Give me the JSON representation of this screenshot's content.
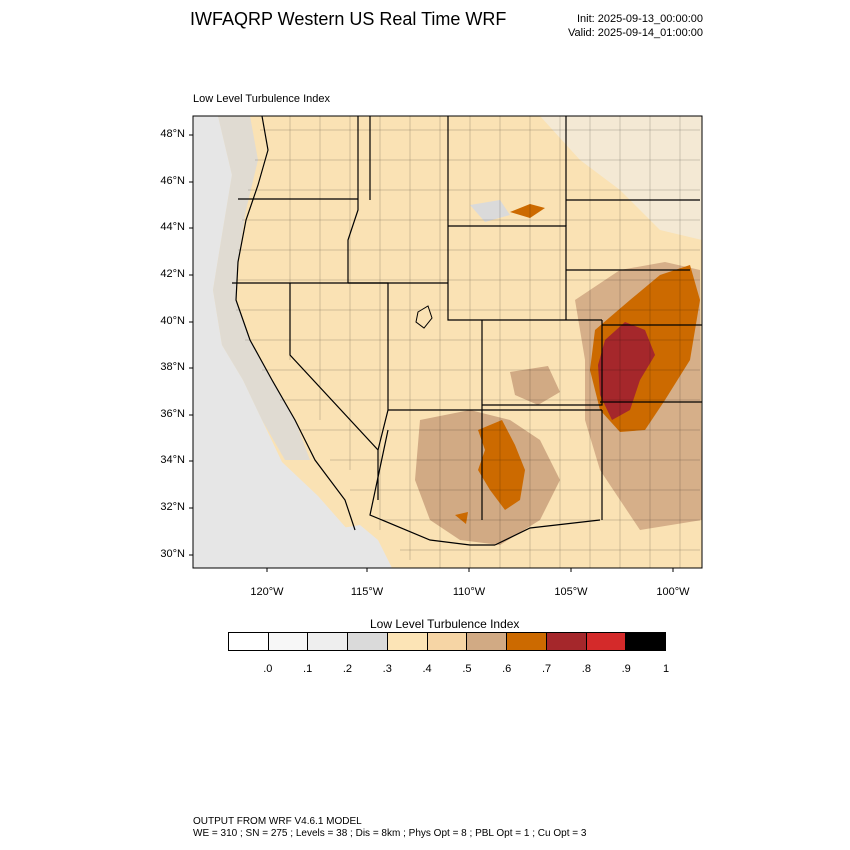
{
  "header": {
    "title": "IWFAQRP Western US Real Time WRF",
    "init": "Init: 2025-09-13_00:00:00",
    "valid": "Valid: 2025-09-14_01:00:00"
  },
  "map": {
    "subtitle": "Low Level Turbulence Index",
    "lat_labels": [
      "48°N",
      "46°N",
      "44°N",
      "42°N",
      "40°N",
      "38°N",
      "36°N",
      "34°N",
      "32°N",
      "30°N"
    ],
    "lon_labels": [
      "120°W",
      "115°W",
      "110°W",
      "105°W",
      "100°W"
    ],
    "colors": {
      "ocean": "#e6e6e6",
      "base_land": "#fae2b4",
      "light_gray": "#dadada",
      "tan": "#d7b38f",
      "orange": "#cc6a00",
      "dark_red": "#a5272b",
      "borders": "#000000"
    }
  },
  "legend": {
    "title": "Low Level Turbulence Index",
    "colors": [
      "#ffffff",
      "#f7f7f7",
      "#eeeeee",
      "#dadada",
      "#fce4b6",
      "#f6d5a5",
      "#d1aa84",
      "#cc6a00",
      "#a5272b",
      "#d42a2a",
      "#000000"
    ],
    "ticks": [
      ".0",
      ".1",
      ".2",
      ".3",
      ".4",
      ".5",
      ".6",
      ".7",
      ".8",
      ".9",
      "1"
    ]
  },
  "footer": {
    "line1": "OUTPUT FROM WRF V4.6.1 MODEL",
    "line2": "WE = 310 ; SN = 275 ; Levels = 38 ; Dis = 8km ; Phys Opt = 8 ; PBL Opt = 1 ; Cu Opt = 3"
  }
}
